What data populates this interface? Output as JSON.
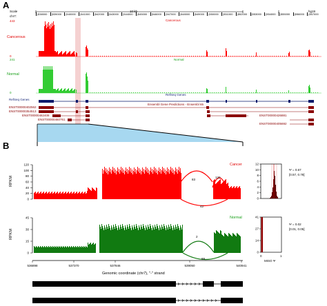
{
  "panel_a": {
    "label": "A",
    "scale_label": "Scale",
    "chr_label": "chr7:",
    "scale_bar_text": "10 kb",
    "genome": "hg19",
    "coords": [
      "538000",
      "539000",
      "540000",
      "541000",
      "542000",
      "543000",
      "544000",
      "545000",
      "546000",
      "547000",
      "548000",
      "549000",
      "550000",
      "551000",
      "552000",
      "553000",
      "554000",
      "555000",
      "556000",
      "557000"
    ],
    "cancerous_track": {
      "name": "Cancerous",
      "max": "443",
      "min": "0",
      "color": "#ff0000"
    },
    "normal_track": {
      "name": "Normal",
      "max": "241",
      "min": "0",
      "color": "#33cc33"
    },
    "refseq_track_title": "RefSeq Genes",
    "refseq_label": "RefSeq Genes",
    "ensembl_track_title": "Ensembl Gene Predictions - Ensembl 65",
    "transcripts": [
      "ENST00000402562",
      "ENST00000354513",
      "ENST00000482408",
      "ENST00000460761"
    ],
    "right_transcripts": [
      "ENST00000426881",
      "ENST00000405692"
    ]
  },
  "panel_b": {
    "label": "B",
    "cancer": {
      "name": "Cancer",
      "ylabel": "RPKM",
      "yticks": [
        "0",
        "20",
        "40",
        "60",
        "80",
        "100",
        "120"
      ],
      "junction_reads": [
        "83",
        "120",
        "42"
      ]
    },
    "normal": {
      "name": "Normal",
      "ylabel": "RPKM",
      "yticks": [
        "0",
        "15",
        "30",
        "45"
      ],
      "junction_reads": [
        "2",
        "69"
      ]
    },
    "x_ticks": [
      "536898",
      "537370",
      "537846",
      "539050",
      "540941"
    ],
    "xlabel": "Genomic coordinate (chr7), \"-\" strand",
    "miso_cancer": {
      "yticks": [
        "0",
        "2",
        "4",
        "6",
        "8",
        "10",
        "12"
      ],
      "psi": "Ψ = 0.67",
      "ci": "[0.57, 0.78]"
    },
    "miso_normal": {
      "yticks": [
        "0",
        "14",
        "27",
        "41"
      ],
      "psi": "Ψ = 0.02",
      "ci": "[0.01, 0.05]"
    },
    "miso_xticks": [
      "0",
      "1"
    ],
    "miso_xlabel": "MISO Ψ"
  },
  "colors": {
    "cancer": "#ff0000",
    "normal": "#11aa11",
    "normal_dark": "#006600",
    "highlight": "#f2c6c6",
    "zoom_fill": "#a7d8f0",
    "ensembl": "#8b0000",
    "refseq": "#0a1a6b"
  }
}
